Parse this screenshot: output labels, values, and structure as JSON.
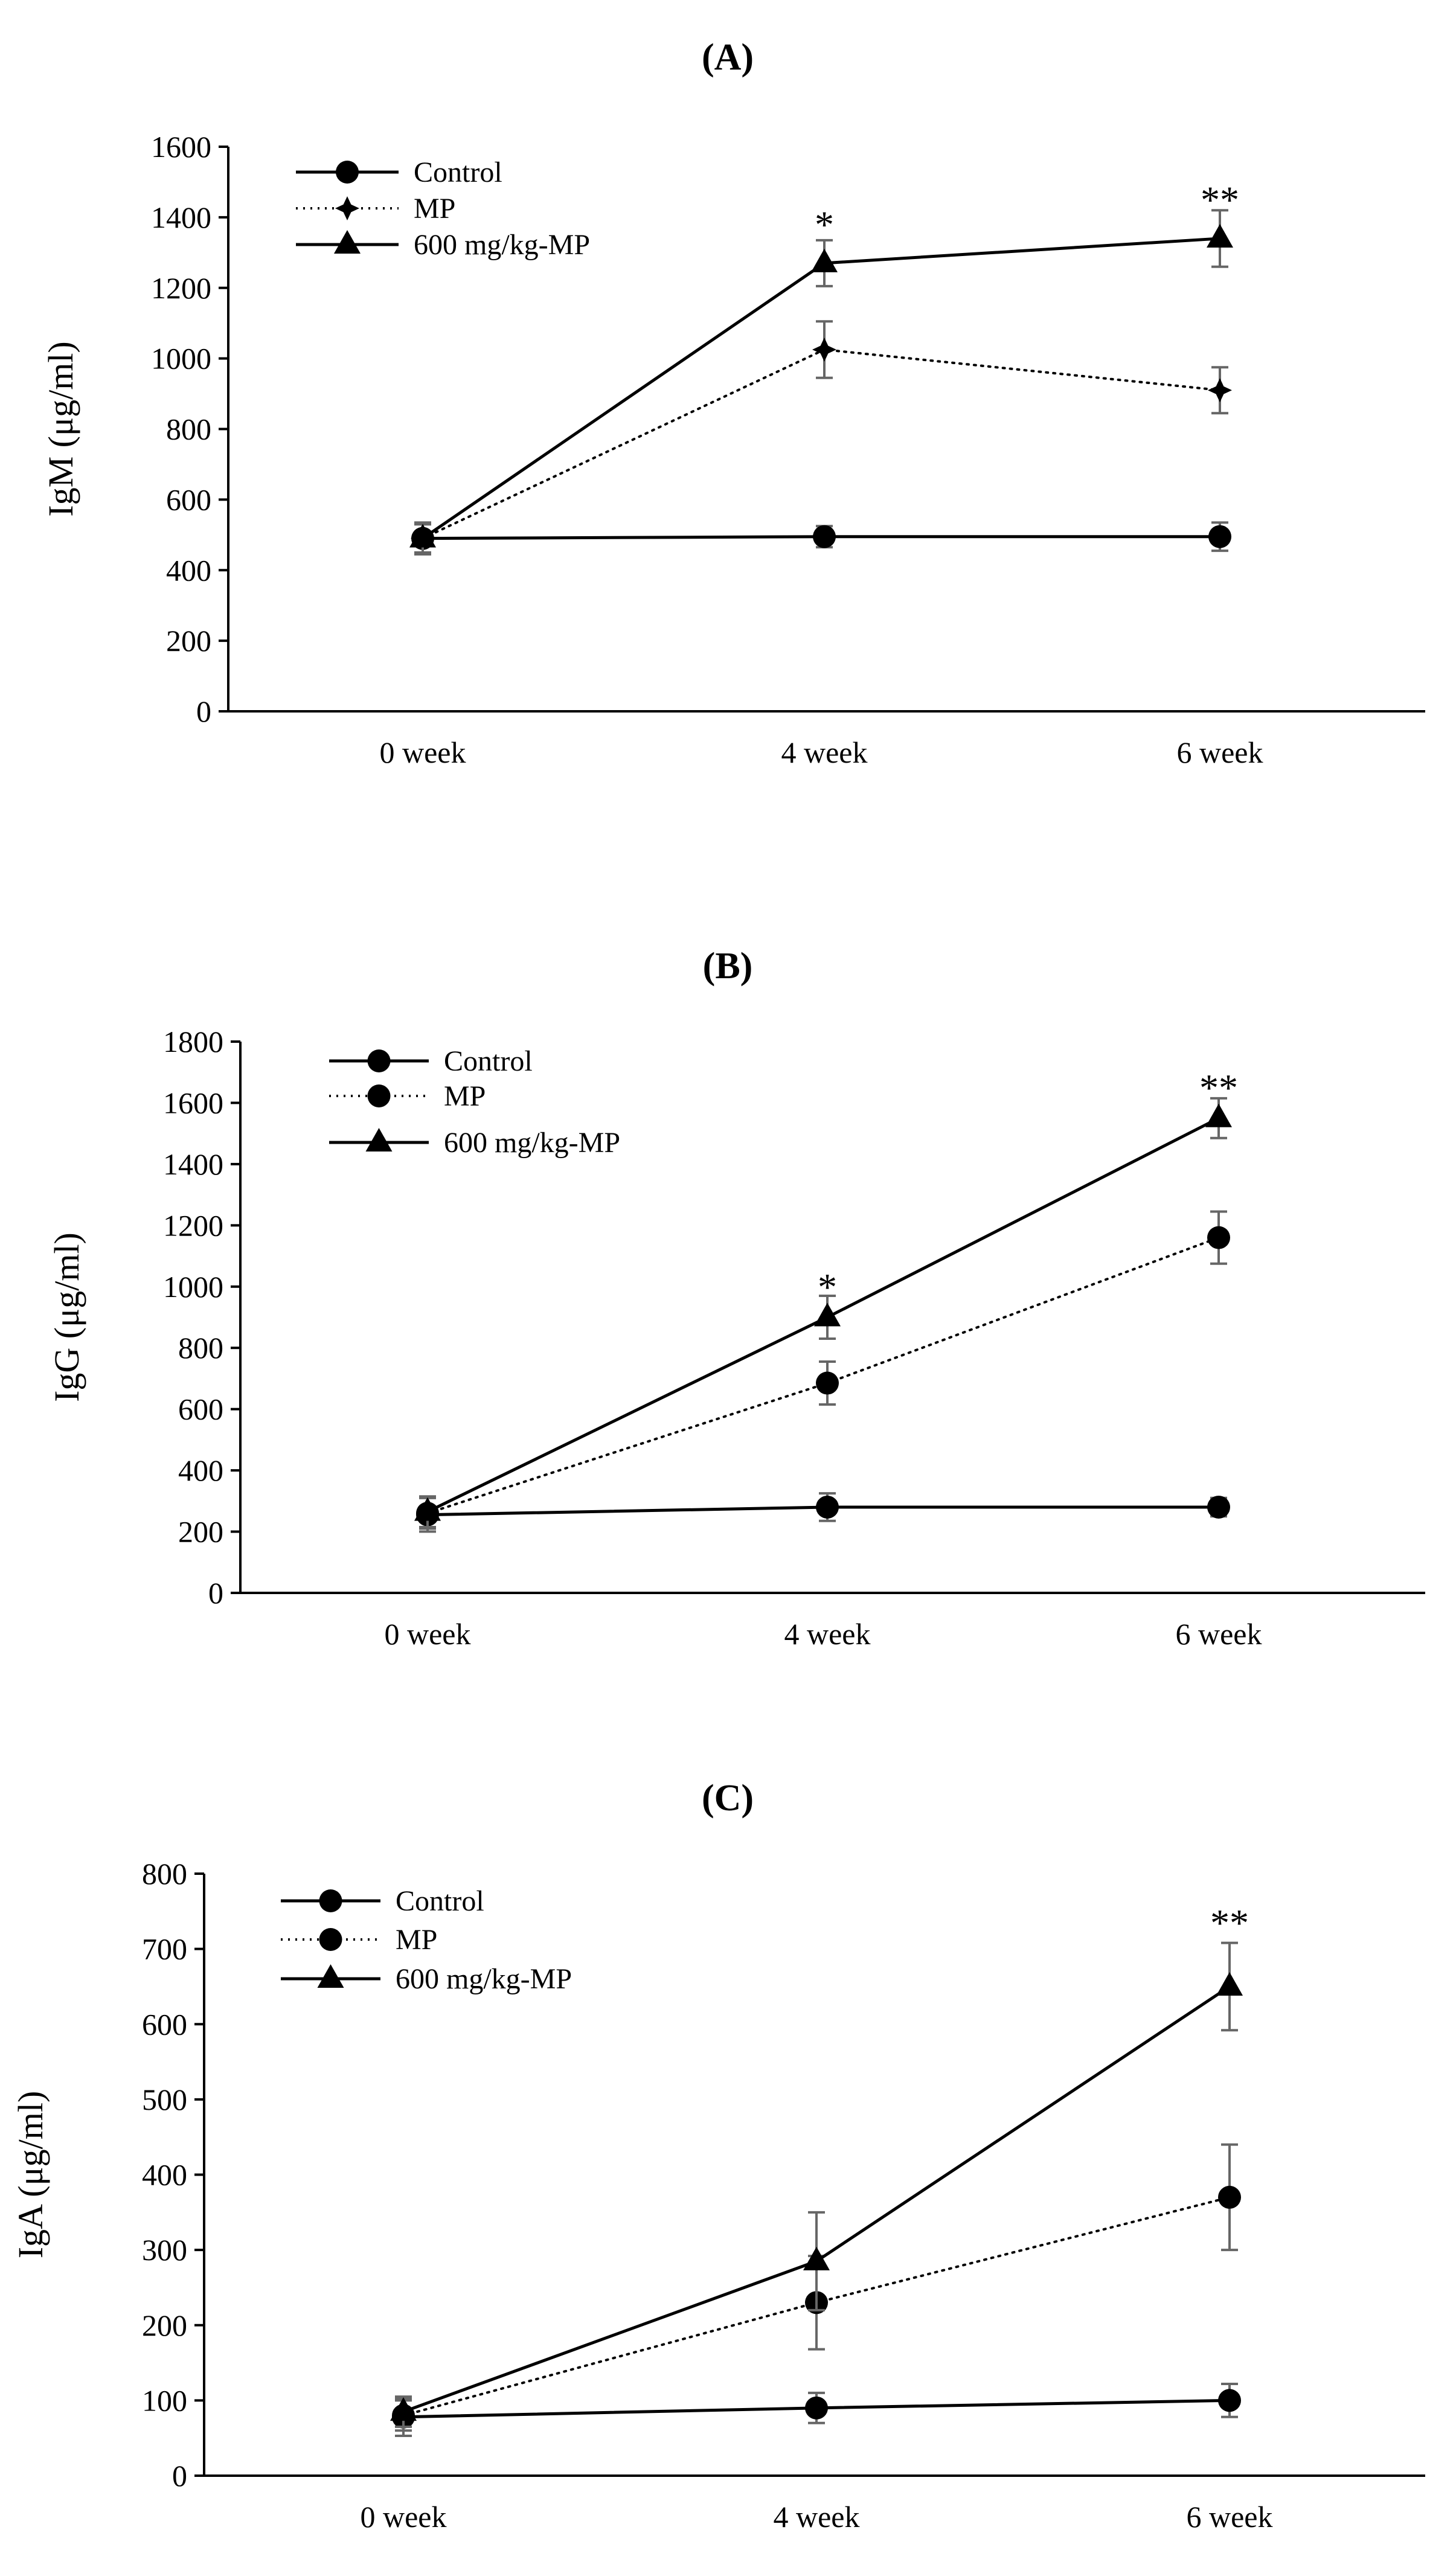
{
  "chart_data": [
    {
      "type": "line",
      "panel": "A",
      "title": "(A)",
      "xlabel": "",
      "ylabel": "IgM (μg/ml)",
      "categories": [
        "0 week",
        "4 week",
        "6 week"
      ],
      "ylim": [
        0,
        1600
      ],
      "yticks": [
        0,
        200,
        400,
        600,
        800,
        1000,
        1200,
        1400,
        1600
      ],
      "series": [
        {
          "name": "Control",
          "marker": "circle",
          "line": "solid",
          "values": [
            490,
            495,
            495
          ],
          "errors": [
            45,
            30,
            40
          ]
        },
        {
          "name": "MP",
          "marker": "star",
          "line": "dotted",
          "values": [
            490,
            1025,
            910
          ],
          "errors": [
            40,
            80,
            65
          ]
        },
        {
          "name": "600 mg/kg-MP",
          "marker": "triangle",
          "line": "solid",
          "values": [
            490,
            1270,
            1340
          ],
          "errors": [
            40,
            65,
            80
          ]
        }
      ],
      "annotations": [
        {
          "category": "4 week",
          "value": 1380,
          "text": "*"
        },
        {
          "category": "6 week",
          "value": 1450,
          "text": "**"
        }
      ]
    },
    {
      "type": "line",
      "panel": "B",
      "title": "(B)",
      "xlabel": "",
      "ylabel": "IgG (μg/ml)",
      "categories": [
        "0 week",
        "4 week",
        "6 week"
      ],
      "ylim": [
        0,
        1800
      ],
      "yticks": [
        0,
        200,
        400,
        600,
        800,
        1000,
        1200,
        1400,
        1600,
        1800
      ],
      "series": [
        {
          "name": "Control",
          "marker": "circle",
          "line": "solid",
          "values": [
            255,
            280,
            280
          ],
          "errors": [
            55,
            45,
            30
          ]
        },
        {
          "name": "MP",
          "marker": "circle",
          "line": "dotted",
          "values": [
            260,
            685,
            1160
          ],
          "errors": [
            50,
            70,
            85
          ]
        },
        {
          "name": "600 mg/kg-MP",
          "marker": "triangle",
          "line": "solid",
          "values": [
            265,
            900,
            1550
          ],
          "errors": [
            50,
            70,
            65
          ]
        }
      ],
      "annotations": [
        {
          "category": "4 week",
          "value": 1000,
          "text": "*"
        },
        {
          "category": "6 week",
          "value": 1650,
          "text": "**"
        }
      ]
    },
    {
      "type": "line",
      "panel": "C",
      "title": "(C)",
      "xlabel": "",
      "ylabel": "IgA (μg/ml)",
      "categories": [
        "0 week",
        "4 week",
        "6 week"
      ],
      "ylim": [
        0,
        800
      ],
      "yticks": [
        0,
        100,
        200,
        300,
        400,
        500,
        600,
        700,
        800
      ],
      "series": [
        {
          "name": "Control",
          "marker": "circle",
          "line": "solid",
          "values": [
            78,
            90,
            100
          ],
          "errors": [
            25,
            20,
            22
          ]
        },
        {
          "name": "MP",
          "marker": "circle",
          "line": "dotted",
          "values": [
            80,
            230,
            370
          ],
          "errors": [
            20,
            62,
            70
          ]
        },
        {
          "name": "600 mg/kg-MP",
          "marker": "triangle",
          "line": "solid",
          "values": [
            85,
            285,
            650
          ],
          "errors": [
            20,
            65,
            58
          ]
        }
      ],
      "annotations": [
        {
          "category": "6 week",
          "value": 735,
          "text": "**"
        }
      ]
    }
  ]
}
